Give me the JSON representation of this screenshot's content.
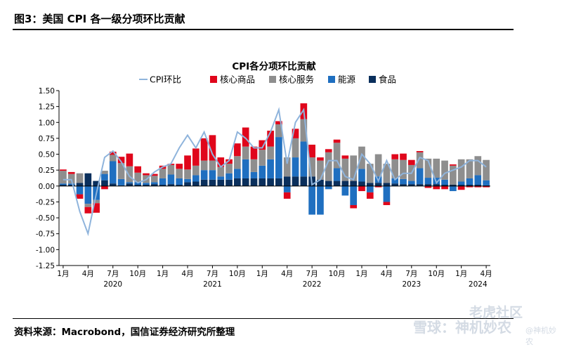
{
  "header": {
    "figure_title": "图3：美国 CPI 各一级分项环比贡献"
  },
  "footer": {
    "source": "资料来源：Macrobond，国信证券经济研究所整理"
  },
  "watermark": {
    "line1": "老虎社区",
    "line2": "雪球：神机妙农",
    "line3": "@神机妙农"
  },
  "colors": {
    "core_goods": "#e0061b",
    "core_services": "#8e8e8e",
    "energy": "#1f6fc0",
    "food": "#0a2f5c",
    "cpi_line": "#8fb4dc"
  },
  "chart_data": {
    "type": "bar",
    "title": "CPI各分项环比贡献",
    "legend": [
      "CPI环比",
      "核心商品",
      "核心服务",
      "能源",
      "食品"
    ],
    "legend_position": "top",
    "ylim": [
      -1.25,
      1.5
    ],
    "yticks": [
      "1.50",
      "1.25",
      "1.00",
      "0.75",
      "0.50",
      "0.25",
      "0.00",
      "-0.25",
      "-0.50",
      "-0.75",
      "-1.00",
      "-1.25"
    ],
    "ytick_values": [
      1.5,
      1.25,
      1.0,
      0.75,
      0.5,
      0.25,
      0.0,
      -0.25,
      -0.5,
      -0.75,
      -1.0,
      -1.25
    ],
    "month_ticks": [
      {
        "index": 0,
        "label": "1月"
      },
      {
        "index": 3,
        "label": "4月"
      },
      {
        "index": 6,
        "label": "7月"
      },
      {
        "index": 9,
        "label": "10月"
      },
      {
        "index": 12,
        "label": "1月"
      },
      {
        "index": 15,
        "label": "4月"
      },
      {
        "index": 18,
        "label": "7月"
      },
      {
        "index": 21,
        "label": "10月"
      },
      {
        "index": 24,
        "label": "1月"
      },
      {
        "index": 27,
        "label": "4月"
      },
      {
        "index": 30,
        "label": "7月"
      },
      {
        "index": 33,
        "label": "10月"
      },
      {
        "index": 36,
        "label": "1月"
      },
      {
        "index": 39,
        "label": "4月"
      },
      {
        "index": 42,
        "label": "7月"
      },
      {
        "index": 45,
        "label": "10月"
      },
      {
        "index": 48,
        "label": "1月"
      },
      {
        "index": 51,
        "label": "4月"
      }
    ],
    "year_labels": [
      {
        "index": 6,
        "label": "2020"
      },
      {
        "index": 18,
        "label": "2021"
      },
      {
        "index": 30,
        "label": "2022"
      },
      {
        "index": 42,
        "label": "2023"
      },
      {
        "index": 50,
        "label": "2024"
      }
    ],
    "series": [
      {
        "name": "核心商品",
        "values": [
          0.02,
          0.03,
          -0.07,
          -0.1,
          -0.15,
          -0.05,
          0.05,
          0.1,
          0.2,
          0.1,
          0.03,
          0.03,
          0.05,
          0.02,
          0.08,
          0.22,
          0.27,
          0.35,
          0.4,
          0.15,
          0.07,
          0.2,
          0.3,
          0.2,
          0.15,
          0.25,
          0.05,
          -0.1,
          0.15,
          0.25,
          0.2,
          0.05,
          0.05,
          0.05,
          0.05,
          -0.05,
          -0.08,
          -0.1,
          -0.02,
          -0.05,
          0.08,
          0.1,
          0.08,
          0.02,
          -0.03,
          -0.05,
          -0.05,
          0.02,
          -0.06,
          -0.02,
          -0.02,
          -0.02
        ]
      },
      {
        "name": "核心服务",
        "values": [
          0.2,
          0.15,
          0.15,
          -0.05,
          -0.05,
          0.05,
          0.1,
          0.25,
          0.25,
          0.15,
          0.12,
          0.1,
          0.15,
          0.15,
          0.15,
          0.15,
          0.15,
          0.15,
          0.15,
          0.15,
          0.15,
          0.2,
          0.2,
          0.2,
          0.25,
          0.2,
          0.2,
          0.3,
          0.3,
          0.35,
          0.3,
          0.3,
          0.45,
          0.4,
          0.35,
          0.4,
          0.35,
          0.3,
          0.35,
          0.3,
          0.3,
          0.3,
          0.25,
          0.25,
          0.3,
          0.3,
          0.3,
          0.3,
          0.35,
          0.3,
          0.3,
          0.32
        ]
      },
      {
        "name": "能源",
        "values": [
          0.02,
          0.02,
          -0.13,
          -0.28,
          -0.22,
          0.1,
          0.35,
          0.1,
          0.02,
          0.04,
          0.03,
          0.03,
          0.1,
          0.15,
          0.1,
          0.05,
          0.1,
          0.15,
          0.15,
          0.05,
          0.1,
          0.15,
          0.3,
          0.1,
          0.2,
          0.3,
          0.65,
          -0.1,
          0.3,
          0.55,
          -0.45,
          -0.45,
          -0.05,
          0.2,
          -0.15,
          -0.3,
          0.2,
          -0.1,
          0.1,
          -0.25,
          0.08,
          0.08,
          0.05,
          0.25,
          0.1,
          0.1,
          0.08,
          -0.08,
          0.05,
          0.1,
          0.15,
          0.08
        ]
      },
      {
        "name": "食品",
        "values": [
          0.02,
          0.02,
          0.05,
          0.2,
          0.08,
          0.09,
          0.04,
          0.01,
          0.04,
          0.02,
          0.02,
          0.03,
          0.02,
          0.03,
          0.02,
          0.06,
          0.07,
          0.1,
          0.1,
          0.1,
          0.1,
          0.12,
          0.12,
          0.12,
          0.12,
          0.12,
          0.12,
          0.15,
          0.15,
          0.15,
          0.15,
          0.1,
          0.08,
          0.08,
          0.08,
          0.08,
          0.07,
          0.05,
          0.05,
          0.05,
          0.04,
          0.03,
          0.03,
          0.03,
          0.03,
          0.03,
          0.02,
          0.02,
          0.02,
          0.02,
          0.02,
          0.01
        ]
      }
    ],
    "line": {
      "name": "CPI环比",
      "values": [
        0.1,
        0.1,
        -0.4,
        -0.75,
        -0.12,
        0.45,
        0.55,
        0.38,
        0.15,
        0.05,
        0.1,
        0.22,
        0.3,
        0.35,
        0.6,
        0.8,
        0.6,
        0.85,
        0.5,
        0.3,
        0.4,
        0.85,
        0.75,
        0.6,
        0.6,
        0.85,
        1.2,
        0.35,
        1.0,
        1.2,
        0.02,
        0.1,
        0.4,
        0.4,
        0.15,
        0.1,
        0.5,
        0.35,
        0.08,
        0.4,
        0.1,
        0.2,
        0.2,
        0.45,
        0.4,
        0.05,
        0.2,
        0.25,
        0.3,
        0.4,
        0.4,
        0.3
      ]
    }
  }
}
